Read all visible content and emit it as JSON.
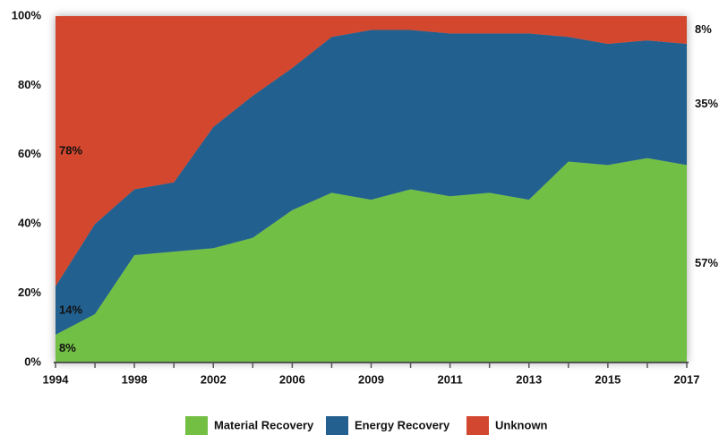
{
  "chart_data": {
    "type": "stacked_area",
    "categories": [
      "1994",
      null,
      "1998",
      null,
      "2002",
      null,
      "2006",
      null,
      "2009",
      null,
      "2011",
      null,
      "2013",
      null,
      "2015",
      null,
      "2017"
    ],
    "series": [
      {
        "name": "Material Recovery",
        "color": "#72bf44",
        "values": [
          8,
          14,
          31,
          32,
          33,
          36,
          44,
          49,
          47,
          50,
          48,
          49,
          47,
          58,
          57,
          59,
          57
        ],
        "value_labels": [
          "8%",
          null,
          null,
          null,
          null,
          null,
          null,
          null,
          null,
          null,
          null,
          null,
          null,
          null,
          null,
          null,
          "57%"
        ]
      },
      {
        "name": "Energy Recovery",
        "color": "#23608f",
        "values": [
          14,
          26,
          19,
          20,
          35,
          41,
          41,
          45,
          49,
          46,
          47,
          46,
          48,
          36,
          35,
          34,
          35
        ],
        "value_labels": [
          "14%",
          null,
          null,
          null,
          null,
          null,
          null,
          null,
          null,
          null,
          null,
          null,
          null,
          null,
          null,
          null,
          "35%"
        ]
      },
      {
        "name": "Unknown",
        "color": "#d2472f",
        "values": [
          78,
          60,
          50,
          48,
          32,
          23,
          15,
          6,
          4,
          4,
          5,
          5,
          5,
          6,
          8,
          7,
          8
        ],
        "value_labels": [
          "78%",
          null,
          null,
          null,
          null,
          null,
          null,
          null,
          null,
          null,
          null,
          null,
          null,
          null,
          null,
          null,
          "8%"
        ]
      }
    ],
    "ylim": [
      0,
      100
    ],
    "yticks": [
      {
        "value": 0,
        "label": "0%"
      },
      {
        "value": 20,
        "label": "20%"
      },
      {
        "value": 40,
        "label": "40%"
      },
      {
        "value": 60,
        "label": "60%"
      },
      {
        "value": 80,
        "label": "80%"
      },
      {
        "value": 100,
        "label": "100%"
      }
    ],
    "legend": "bottom",
    "grid": false
  }
}
